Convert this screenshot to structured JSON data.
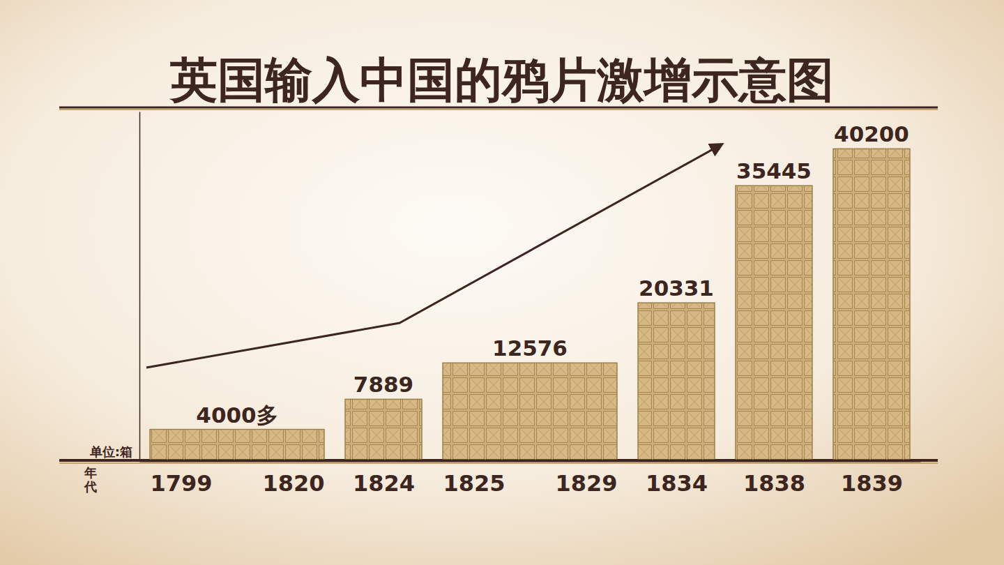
{
  "chart_data": {
    "type": "bar",
    "title": "英国输入中国的鸦片激增示意图",
    "x_label": "年代",
    "y_label": "单位:箱",
    "categories": [
      [
        "1799",
        "1820"
      ],
      [
        "1824"
      ],
      [
        "1825",
        "1829"
      ],
      [
        "1834"
      ],
      [
        "1838"
      ],
      [
        "1839"
      ]
    ],
    "values": [
      4000,
      7889,
      12576,
      20331,
      35445,
      40200
    ],
    "value_labels": [
      "4000多",
      "7889",
      "12576",
      "20331",
      "35445",
      "40200"
    ],
    "data_labels": true,
    "color": "#d6b884",
    "ylim": [
      0,
      45000
    ],
    "yticks": [],
    "tick_labels": "x",
    "grid": false
  }
}
